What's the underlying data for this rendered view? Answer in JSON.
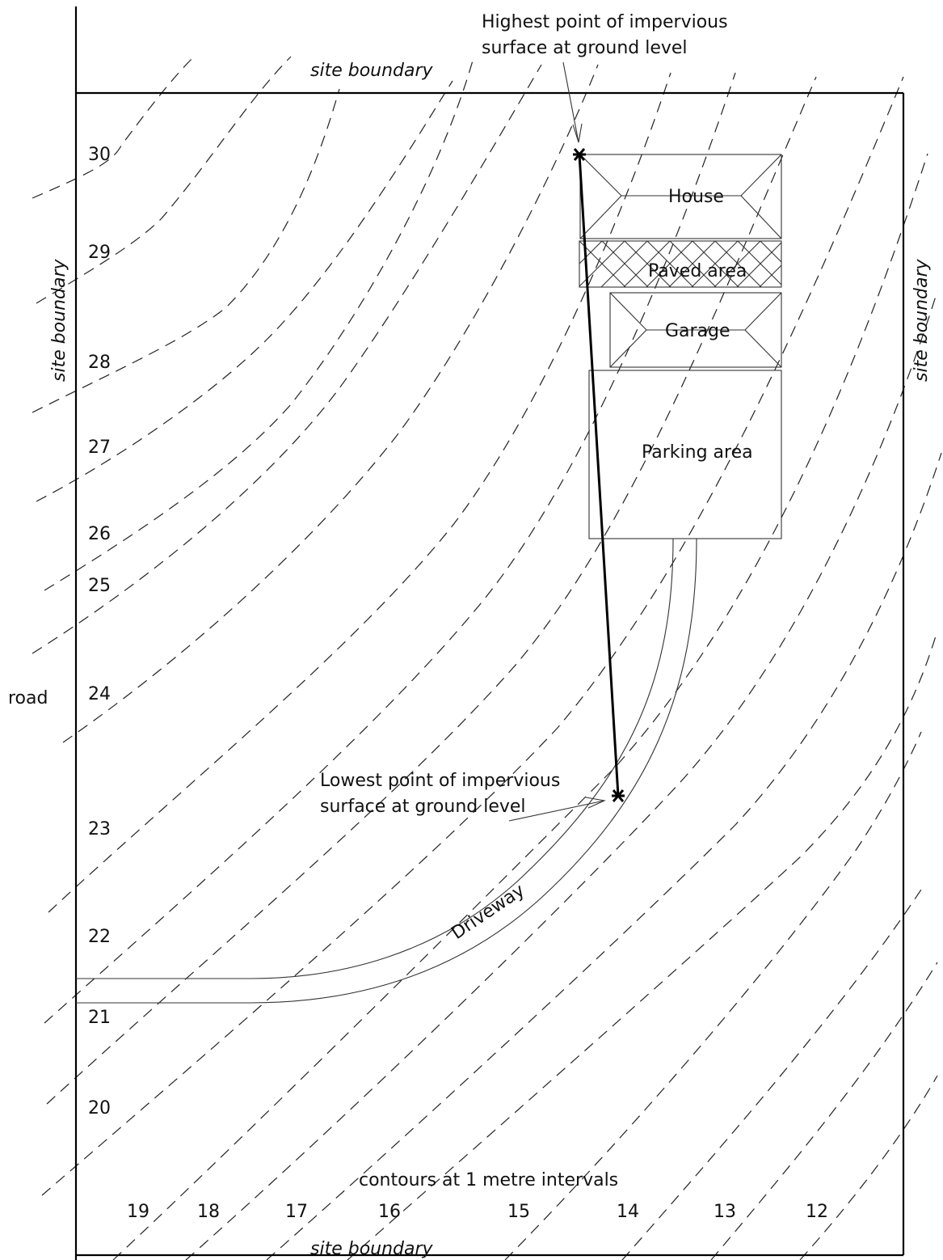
{
  "labels": {
    "site_boundary_top": "site boundary",
    "site_boundary_bottom": "site boundary",
    "site_boundary_left": "site boundary",
    "site_boundary_right": "site boundary",
    "road": "road",
    "highest_point_line1": "Highest point of impervious",
    "highest_point_line2": "surface at ground level",
    "lowest_point_line1": "Lowest point of impervious",
    "lowest_point_line2": "surface at ground level",
    "house": "House",
    "paved_area": "Paved area",
    "garage": "Garage",
    "parking_area": "Parking area",
    "driveway": "Driveway",
    "contours_note": "contours at 1 metre intervals"
  },
  "contour_labels_left": [
    "30",
    "29",
    "28",
    "27",
    "26",
    "25",
    "24",
    "23",
    "22",
    "21",
    "20"
  ],
  "contour_labels_bottom": [
    "19",
    "18",
    "17",
    "16",
    "15",
    "14",
    "13",
    "12"
  ]
}
